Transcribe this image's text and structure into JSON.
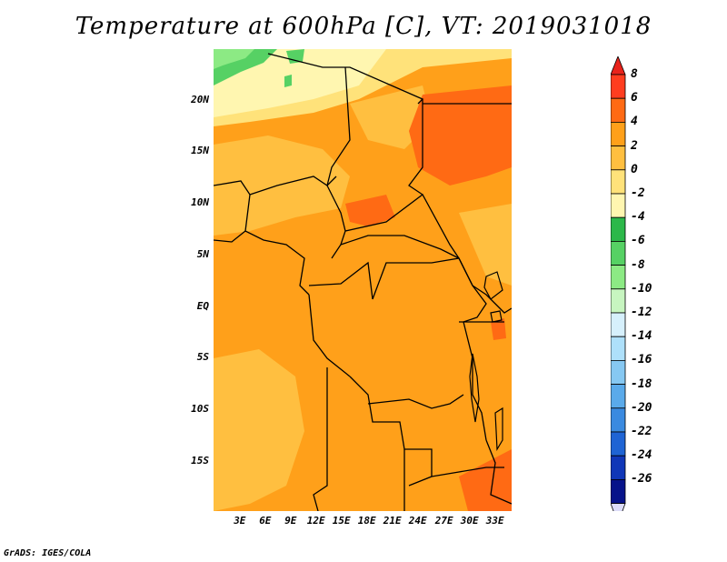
{
  "title": "Temperature at 600hPa [C], VT: 2019031018",
  "footer": "GrADS: IGES/COLA",
  "lat_labels": [
    "20N",
    "15N",
    "10N",
    "5N",
    "EQ",
    "5S",
    "10S",
    "15S"
  ],
  "lon_labels": [
    "3E",
    "6E",
    "9E",
    "12E",
    "15E",
    "18E",
    "21E",
    "24E",
    "27E",
    "30E",
    "33E"
  ],
  "colorbar": {
    "labels": [
      "8",
      "6",
      "4",
      "2",
      "0",
      "-2",
      "-4",
      "-6",
      "-8",
      "-10",
      "-12",
      "-14",
      "-16",
      "-18",
      "-20",
      "-22",
      "-24",
      "-26"
    ],
    "colors": [
      "#ff3d1f",
      "#ff6a14",
      "#ffa01a",
      "#ffbf40",
      "#ffe27a",
      "#fff6b0",
      "#2cb84a",
      "#56d164",
      "#8cea84",
      "#c7f5c0",
      "#d6f0fc",
      "#aee0fa",
      "#86c8f2",
      "#5aaaea",
      "#3a8ae0",
      "#1f64d4",
      "#1037b8",
      "#07138a"
    ],
    "upper_arrow_color": "#e8231b",
    "lower_arrow_color": "#dcdcf8"
  },
  "field_colors": {
    "base": "#ffa01a",
    "light": "#ffbf40",
    "warm": "#ff6a14",
    "pale": "#fff6b0",
    "cream": "#ffe27a",
    "green": "#56d164",
    "lightgreen": "#8cea84"
  }
}
